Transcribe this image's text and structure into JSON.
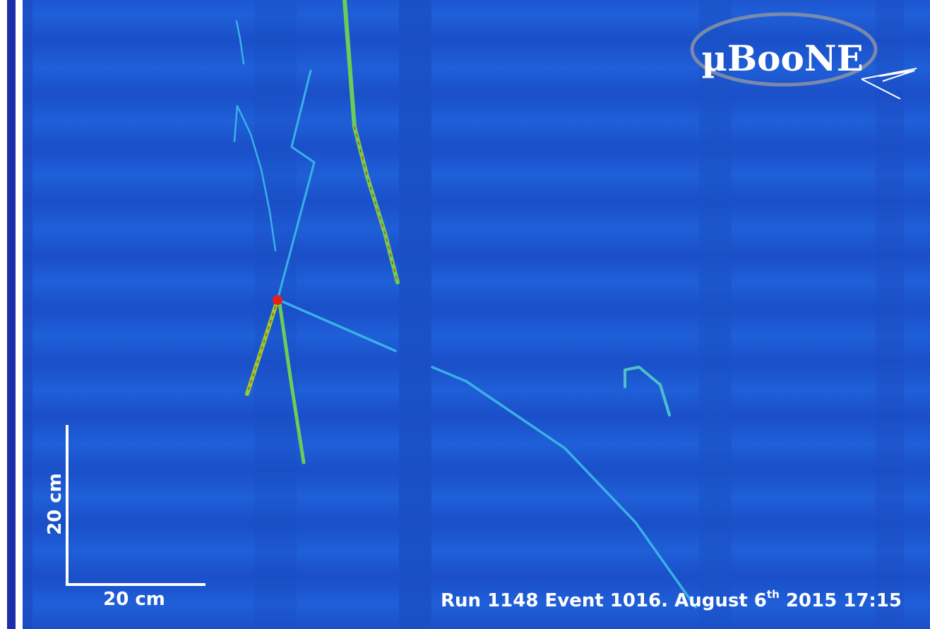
{
  "logo": "µBooNE",
  "scale_bar": {
    "vertical_label": "20 cm",
    "horizontal_label": "20 cm"
  },
  "caption": {
    "main": "Run 1148 Event 1016. August 6",
    "superscript": "th",
    "rest": " 2015 17:15"
  }
}
